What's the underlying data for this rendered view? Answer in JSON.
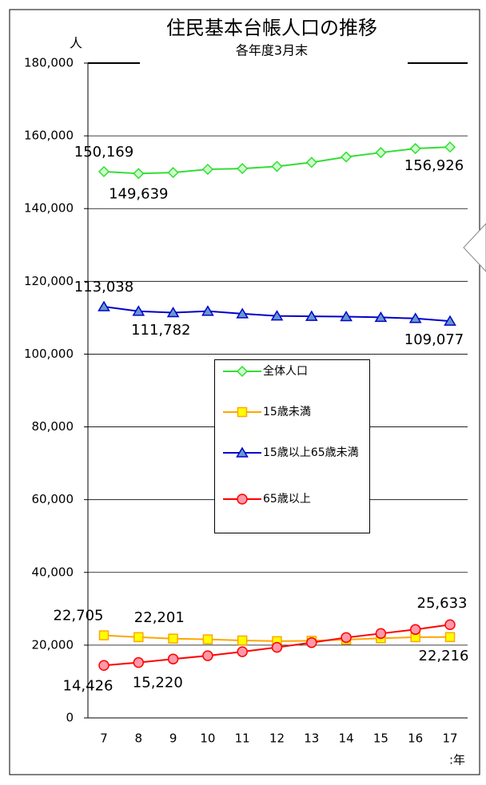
{
  "chart_data": {
    "type": "line",
    "title": "住民基本台帳人口の推移",
    "subtitle": "各年度3月末",
    "y_label": "人",
    "x_label": ":年",
    "categories": [
      "7",
      "8",
      "9",
      "10",
      "11",
      "12",
      "13",
      "14",
      "15",
      "16",
      "17"
    ],
    "ylim": [
      0,
      180000
    ],
    "yticks": [
      0,
      {
        "value": 20000,
        "label": "20,000"
      },
      {
        "value": 40000,
        "label": "40,000"
      },
      {
        "value": 60000,
        "label": "60,000"
      },
      {
        "value": 80000,
        "label": "80,000"
      },
      {
        "value": 100000,
        "label": "100,000"
      },
      {
        "value": 120000,
        "label": "120,000"
      },
      {
        "value": 140000,
        "label": "140,000"
      },
      {
        "value": 160000,
        "label": "160,000"
      },
      {
        "value": 180000,
        "label": "180,000"
      }
    ],
    "grid": true,
    "series": [
      {
        "name": "全体人口",
        "color": "#33dd33",
        "marker": "diamond",
        "marker_fill": "#ccffcc",
        "values": [
          150169,
          149639,
          149900,
          150800,
          151000,
          151600,
          152700,
          154200,
          155400,
          156500,
          156926
        ],
        "value_labels": [
          "150,169",
          "149,639",
          null,
          null,
          null,
          null,
          null,
          null,
          null,
          null,
          "156,926"
        ]
      },
      {
        "name": "15歳未満",
        "color": "#ffa500",
        "marker": "square",
        "marker_fill": "#ffff00",
        "values": [
          22705,
          22201,
          21800,
          21600,
          21300,
          21100,
          21200,
          21500,
          21900,
          22200,
          22216
        ],
        "value_labels": [
          "22,705",
          "22,201",
          null,
          null,
          null,
          null,
          null,
          null,
          null,
          null,
          "22,216"
        ]
      },
      {
        "name": "15歳以上65歳未満",
        "color": "#0000cc",
        "marker": "triangle",
        "marker_fill": "#6699cc",
        "values": [
          113038,
          111782,
          111400,
          111800,
          111100,
          110500,
          110400,
          110300,
          110100,
          109800,
          109077
        ],
        "value_labels": [
          "113,038",
          "111,782",
          null,
          null,
          null,
          null,
          null,
          null,
          null,
          null,
          "109,077"
        ]
      },
      {
        "name": "65歳以上",
        "color": "#ff0000",
        "marker": "circle",
        "marker_fill": "#ff99aa",
        "values": [
          14426,
          15220,
          16200,
          17100,
          18200,
          19400,
          20700,
          22100,
          23200,
          24300,
          25633
        ],
        "value_labels": [
          "14,426",
          "15,220",
          null,
          null,
          null,
          null,
          null,
          null,
          null,
          null,
          "25,633"
        ]
      }
    ]
  }
}
